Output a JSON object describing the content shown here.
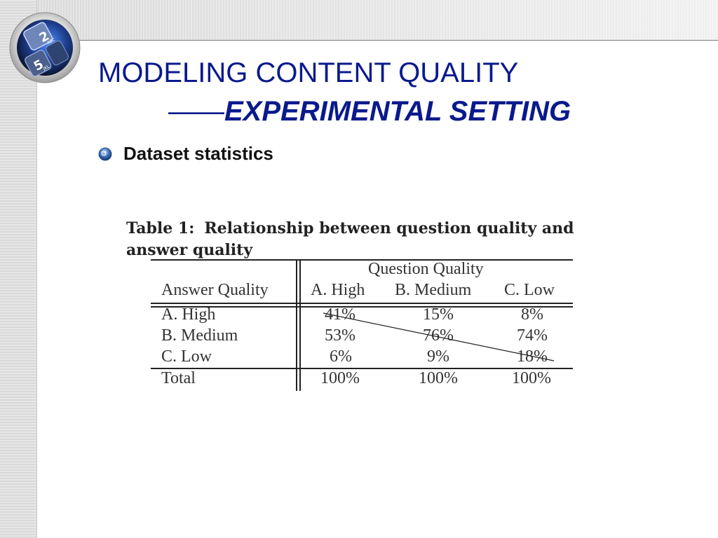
{
  "slide": {
    "title_line1": "MODELING CONTENT QUALITY",
    "title_dash": "——",
    "title_line2": "EXPERIMENTAL SETTING",
    "bullet": "Dataset statistics"
  },
  "logo": {
    "icon": "keypad-icon",
    "keys": [
      "2",
      "ABC",
      "5",
      "JKL"
    ]
  },
  "table": {
    "caption_label": "Table 1:",
    "caption_text": "Relationship between question quality and answer quality",
    "group_header": "Question Quality",
    "row_header": "Answer Quality",
    "columns": [
      "A. High",
      "B. Medium",
      "C. Low"
    ],
    "rows": [
      {
        "label": "A. High",
        "values": [
          "41%",
          "15%",
          "8%"
        ]
      },
      {
        "label": "B. Medium",
        "values": [
          "53%",
          "76%",
          "74%"
        ]
      },
      {
        "label": "C. Low",
        "values": [
          "6%",
          "9%",
          "18%"
        ]
      }
    ],
    "total": {
      "label": "Total",
      "values": [
        "100%",
        "100%",
        "100%"
      ]
    }
  },
  "colors": {
    "title": "#0a1a8c",
    "bullet_icon": "#3b6fb6"
  }
}
